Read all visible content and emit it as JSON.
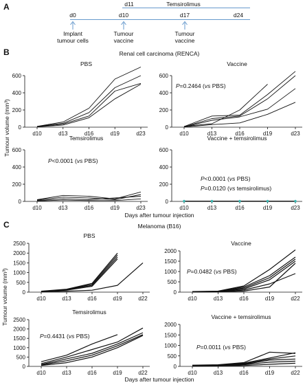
{
  "panel_a": {
    "letter": "A",
    "day_labels": [
      "d0",
      "d10",
      "d11",
      "d17",
      "d24"
    ],
    "treatment": "Temsirolimus",
    "events": [
      {
        "day": "d0",
        "label_lines": [
          "Implant",
          "tumour cells"
        ]
      },
      {
        "day": "d10",
        "label_lines": [
          "Tumour",
          "vaccine"
        ]
      },
      {
        "day": "d17",
        "label_lines": [
          "Tumour",
          "vaccine"
        ]
      }
    ],
    "arrow_color": "#6699cc",
    "treatment_line_color": "#6699cc"
  },
  "panel_b": {
    "letter": "B",
    "title": "Renal cell carcinoma (RENCA)",
    "y_axis_label": "Tumour volume (mm³)",
    "x_axis_label": "Days after tumour injection"
  },
  "panel_c": {
    "letter": "C",
    "title": "Melanoma (B16)",
    "y_axis_label": "Tumour volume (mm³)",
    "x_axis_label": "Days after tumour injection"
  },
  "chart_data": [
    {
      "type": "line",
      "panel": "B",
      "title": "PBS",
      "annotation_lines": [],
      "categories": [
        "d10",
        "d13",
        "d16",
        "d19",
        "d23"
      ],
      "ylim": [
        0,
        600
      ],
      "yticks": [
        0,
        200,
        400,
        600
      ],
      "series": [
        {
          "values": [
            10,
            60,
            220,
            560,
            700
          ]
        },
        {
          "values": [
            8,
            45,
            170,
            460,
            600
          ]
        },
        {
          "values": [
            5,
            35,
            130,
            420,
            510
          ]
        },
        {
          "values": [
            3,
            25,
            110,
            330,
            500
          ]
        }
      ]
    },
    {
      "type": "line",
      "panel": "B",
      "title": "Vaccine",
      "annotation_lines": [
        "P=0.2464 (vs PBS)"
      ],
      "categories": [
        "d10",
        "d13",
        "d16",
        "d19",
        "d23"
      ],
      "ylim": [
        0,
        600
      ],
      "yticks": [
        0,
        200,
        400,
        600
      ],
      "series": [
        {
          "values": [
            10,
            40,
            200,
            500,
            null
          ]
        },
        {
          "values": [
            8,
            130,
            140,
            380,
            650
          ]
        },
        {
          "values": [
            5,
            100,
            130,
            330,
            600
          ]
        },
        {
          "values": [
            3,
            80,
            120,
            210,
            450
          ]
        },
        {
          "values": [
            2,
            30,
            50,
            150,
            290
          ]
        }
      ]
    },
    {
      "type": "line",
      "panel": "B",
      "title": "Temsirolimus",
      "annotation_lines": [
        "P<0.0001 (vs PBS)"
      ],
      "categories": [
        "d10",
        "d13",
        "d16",
        "d19",
        "d23"
      ],
      "ylim": [
        0,
        600
      ],
      "yticks": [
        0,
        200,
        400,
        600
      ],
      "series": [
        {
          "values": [
            20,
            70,
            60,
            30,
            110
          ]
        },
        {
          "values": [
            15,
            50,
            40,
            20,
            80
          ]
        },
        {
          "values": [
            10,
            30,
            20,
            40,
            60
          ]
        },
        {
          "values": [
            5,
            15,
            10,
            10,
            30
          ]
        }
      ]
    },
    {
      "type": "line",
      "panel": "B",
      "title": "Vaccine + temsirolimus",
      "annotation_lines": [
        "P<0.0001 (vs PBS)",
        "P=0.0120 (vs temsirolimus)"
      ],
      "categories": [
        "d10",
        "d13",
        "d16",
        "d19",
        "d23"
      ],
      "ylim": [
        0,
        600
      ],
      "yticks": [
        0,
        200,
        400,
        600
      ],
      "marker_color": "#3cb9b4",
      "series": [
        {
          "values": [
            5,
            5,
            5,
            5,
            5
          ]
        },
        {
          "values": [
            3,
            3,
            3,
            3,
            3
          ]
        },
        {
          "values": [
            2,
            2,
            2,
            2,
            2
          ]
        },
        {
          "values": [
            0,
            0,
            0,
            0,
            0
          ]
        }
      ]
    },
    {
      "type": "line",
      "panel": "C",
      "title": "PBS",
      "annotation_lines": [],
      "categories": [
        "d10",
        "d13",
        "d16",
        "d19",
        "d22"
      ],
      "ylim": [
        0,
        2500
      ],
      "yticks": [
        0,
        500,
        1000,
        1500,
        2000,
        2500
      ],
      "series": [
        {
          "values": [
            50,
            150,
            450,
            2000,
            null
          ]
        },
        {
          "values": [
            40,
            130,
            400,
            1900,
            null
          ]
        },
        {
          "values": [
            30,
            120,
            350,
            1800,
            null
          ]
        },
        {
          "values": [
            20,
            100,
            300,
            1700,
            null
          ]
        },
        {
          "values": [
            10,
            50,
            100,
            350,
            1500
          ]
        }
      ]
    },
    {
      "type": "line",
      "panel": "C",
      "title": "Vaccine",
      "annotation_lines": [
        "P=0.0482 (vs PBS)"
      ],
      "categories": [
        "d10",
        "d13",
        "d16",
        "d19",
        "d22"
      ],
      "ylim": [
        0,
        2000
      ],
      "yticks": [
        0,
        500,
        1000,
        1500,
        2000
      ],
      "series": [
        {
          "values": [
            30,
            50,
            300,
            1100,
            2050
          ]
        },
        {
          "values": [
            20,
            40,
            250,
            800,
            1700
          ]
        },
        {
          "values": [
            20,
            30,
            200,
            700,
            1600
          ]
        },
        {
          "values": [
            10,
            30,
            150,
            600,
            1500
          ]
        },
        {
          "values": [
            10,
            20,
            100,
            400,
            900
          ]
        },
        {
          "values": [
            5,
            10,
            50,
            250,
            1400
          ]
        }
      ]
    },
    {
      "type": "line",
      "panel": "C",
      "title": "Temsirolimus",
      "annotation_lines": [
        "P=0.4431 (vs PBS)"
      ],
      "categories": [
        "d10",
        "d13",
        "d16",
        "d19",
        "d22"
      ],
      "ylim": [
        0,
        2500
      ],
      "yticks": [
        0,
        500,
        1000,
        1500,
        2000,
        2500
      ],
      "series": [
        {
          "values": [
            250,
            600,
            1200,
            1700,
            null
          ]
        },
        {
          "values": [
            150,
            500,
            900,
            1300,
            2050
          ]
        },
        {
          "values": [
            100,
            400,
            700,
            1200,
            1800
          ]
        },
        {
          "values": [
            80,
            300,
            600,
            1100,
            1700
          ]
        },
        {
          "values": [
            50,
            200,
            500,
            1000,
            1650
          ]
        }
      ]
    },
    {
      "type": "line",
      "panel": "C",
      "title": "Vaccine + temsirolimus",
      "annotation_lines": [
        "P=0.0011 (vs PBS)"
      ],
      "categories": [
        "d10",
        "d13",
        "d16",
        "d19",
        "d22"
      ],
      "ylim": [
        0,
        2000
      ],
      "yticks": [
        0,
        500,
        1000,
        1500,
        2000
      ],
      "series": [
        {
          "values": [
            60,
            80,
            180,
            680,
            620
          ]
        },
        {
          "values": [
            40,
            60,
            150,
            400,
            650
          ]
        },
        {
          "values": [
            30,
            50,
            120,
            350,
            500
          ]
        },
        {
          "values": [
            20,
            40,
            100,
            300,
            350
          ]
        },
        {
          "values": [
            10,
            30,
            80,
            200,
            250
          ]
        },
        {
          "values": [
            5,
            20,
            40,
            100,
            150
          ]
        }
      ]
    }
  ]
}
